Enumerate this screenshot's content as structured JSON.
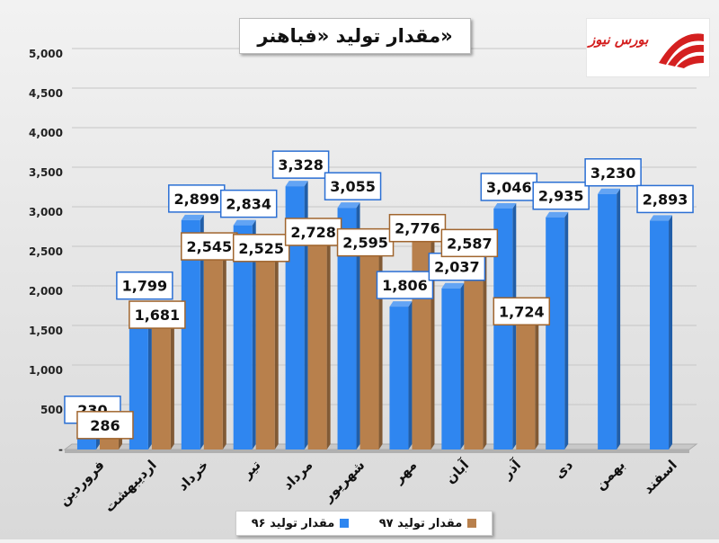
{
  "title": "مقدار تولید «فباهنر»",
  "logo_text": "بورس نیوز",
  "colors": {
    "s96": "#2f86f0",
    "s97": "#b8804c",
    "s96_border": "#2a6fd4",
    "s97_border": "#a0652e"
  },
  "chart_data": {
    "type": "bar",
    "title": "مقدار تولید «فباهنر»",
    "categories": [
      "فروردین",
      "اردیبهشت",
      "خرداد",
      "تیر",
      "مرداد",
      "شهریور",
      "مهر",
      "آبان",
      "آذر",
      "دی",
      "بهمن",
      "اسفند"
    ],
    "series": [
      {
        "name": "مقدار تولید ۹۶",
        "values": [
          230,
          1799,
          2899,
          2834,
          3328,
          3055,
          1806,
          2037,
          3046,
          2935,
          3230,
          2893
        ]
      },
      {
        "name": "مقدار تولید ۹۷",
        "values": [
          286,
          1681,
          2545,
          2525,
          2728,
          2595,
          2776,
          2587,
          1724,
          null,
          null,
          null
        ]
      }
    ],
    "data_labels": {
      "s96": [
        "230",
        "1,799",
        "2,899",
        "2,834",
        "3,328",
        "3,055",
        "1,806",
        "2,037",
        "3,046",
        "2,935",
        "3,230",
        "2,893"
      ],
      "s97": [
        "286",
        "1,681",
        "2,545",
        "2,525",
        "2,728",
        "2,595",
        "2,776",
        "2,587",
        "1,724",
        "",
        "",
        ""
      ]
    },
    "yticks": [
      "-",
      "500",
      "1,000",
      "1,500",
      "2,000",
      "2,500",
      "3,000",
      "3,500",
      "4,000",
      "4,500",
      "5,000"
    ],
    "ylim": [
      0,
      5000
    ],
    "grid": true,
    "legend_position": "bottom"
  }
}
